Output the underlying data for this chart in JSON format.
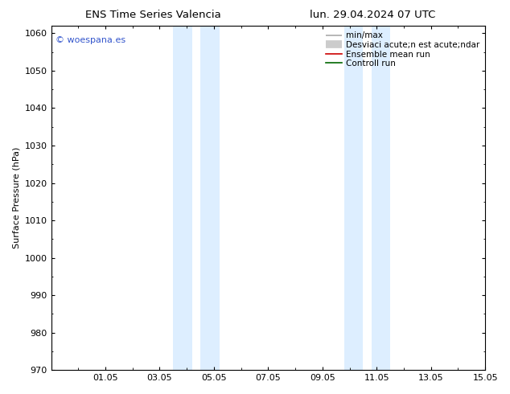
{
  "title_left": "ENS Time Series Valencia",
  "title_right": "lun. 29.04.2024 07 UTC",
  "ylabel": "Surface Pressure (hPa)",
  "ylim": [
    970,
    1062
  ],
  "yticks": [
    970,
    980,
    990,
    1000,
    1010,
    1020,
    1030,
    1040,
    1050,
    1060
  ],
  "xtick_labels": [
    "01.05",
    "03.05",
    "05.05",
    "07.05",
    "09.05",
    "11.05",
    "13.05",
    "15.05"
  ],
  "xtick_positions": [
    2,
    4,
    6,
    8,
    10,
    12,
    14,
    16
  ],
  "shade_regions": [
    {
      "xmin": 4.5,
      "xmax": 5.2
    },
    {
      "xmin": 5.5,
      "xmax": 6.2
    },
    {
      "xmin": 10.8,
      "xmax": 11.5
    },
    {
      "xmin": 11.8,
      "xmax": 12.5
    }
  ],
  "shade_color": "#ddeeff",
  "watermark": "© woespana.es",
  "watermark_color": "#3355cc",
  "legend_labels": [
    "min/max",
    "Desviaci acute;n est acute;ndar",
    "Ensemble mean run",
    "Controll run"
  ],
  "legend_colors": [
    "#aaaaaa",
    "#cccccc",
    "#cc0000",
    "#006600"
  ],
  "legend_lw": [
    1.2,
    7,
    1.2,
    1.2
  ],
  "bg_color": "#ffffff",
  "font_size": 8,
  "title_font_size": 9.5
}
